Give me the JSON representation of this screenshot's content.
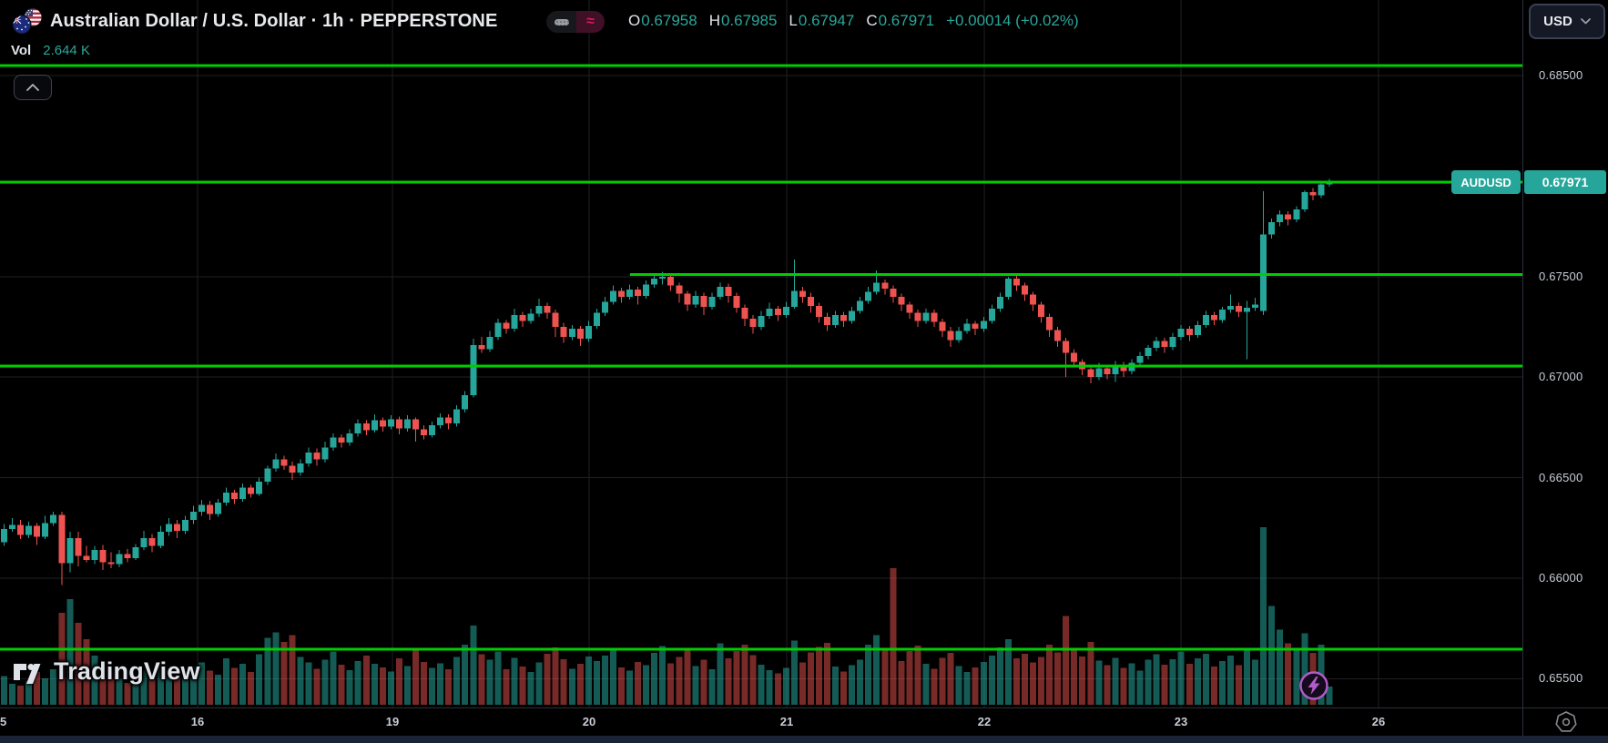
{
  "header": {
    "symbol_title": "Australian Dollar / U.S. Dollar · 1h · PEPPERSTONE",
    "ohlc": {
      "o_label": "O",
      "o": "0.67958",
      "h_label": "H",
      "h": "0.67985",
      "l_label": "L",
      "l": "0.67947",
      "c_label": "C",
      "c": "0.67971",
      "change": "+0.00014 (+0.02%)"
    },
    "volume_label": "Vol",
    "volume_value": "2.644 K",
    "currency_button": "USD"
  },
  "footer": {
    "logo_text": "TradingView"
  },
  "icons": {
    "flag": "aud-usd-flags-icon",
    "pill_left": "minimize-dash-icon",
    "pill_right_glyph": "≈",
    "collapse": "chevron-up-icon",
    "currency_dropdown": "chevron-down-icon",
    "badge": "lightning-icon",
    "corner": "heptagon-settings-icon"
  },
  "colors": {
    "background": "#000000",
    "up": "#26a69a",
    "down": "#ef5350",
    "vol_up": "rgba(38,166,154,0.55)",
    "vol_down": "rgba(239,83,80,0.5)",
    "level_line": "#00cc02",
    "grid": "#202023",
    "axis_text": "#c8ccd6",
    "label_bg": "#26a69a",
    "accent_pink": "#d81b60",
    "badge_purple": "#b05cc9"
  },
  "chart_data": {
    "type": "candlestick",
    "symbol": "AUDUSD",
    "interval": "1h",
    "exchange": "PEPPERSTONE",
    "title": "Australian Dollar / U.S. Dollar",
    "last_price": 0.67971,
    "price_label": {
      "tag": "AUDUSD",
      "value": "0.67971"
    },
    "ylim": [
      0.6536,
      0.6888
    ],
    "grid": true,
    "y_axis": {
      "ticks": [
        {
          "label": "0.68500",
          "price": 0.685
        },
        {
          "label": "0.67500",
          "price": 0.675
        },
        {
          "label": "0.67000",
          "price": 0.67
        },
        {
          "label": "0.66500",
          "price": 0.665
        },
        {
          "label": "0.66000",
          "price": 0.66
        },
        {
          "label": "0.65500",
          "price": 0.655
        }
      ]
    },
    "x_axis": {
      "ticks": [
        {
          "label": "5",
          "x": 2
        },
        {
          "label": "16",
          "x": 217
        },
        {
          "label": "19",
          "x": 431
        },
        {
          "label": "20",
          "x": 647
        },
        {
          "label": "21",
          "x": 864
        },
        {
          "label": "22",
          "x": 1081
        },
        {
          "label": "23",
          "x": 1297
        },
        {
          "label": "26",
          "x": 1514
        }
      ]
    },
    "horizontal_lines": [
      {
        "price": 0.6855,
        "from_x": 0
      },
      {
        "price": 0.67971,
        "from_x": 0
      },
      {
        "price": 0.6751,
        "from_x": 692
      },
      {
        "price": 0.67055,
        "from_x": 0
      },
      {
        "price": 0.65647,
        "from_x": 0
      }
    ],
    "candles": [
      [
        0.6618,
        0.6627,
        0.6616,
        0.66245
      ],
      [
        0.66245,
        0.663,
        0.6623,
        0.66265
      ],
      [
        0.66265,
        0.6629,
        0.66195,
        0.66215
      ],
      [
        0.66215,
        0.6628,
        0.662,
        0.6626
      ],
      [
        0.6626,
        0.66275,
        0.66165,
        0.66205
      ],
      [
        0.66205,
        0.6631,
        0.66195,
        0.66275
      ],
      [
        0.66275,
        0.6633,
        0.6626,
        0.66315
      ],
      [
        0.66315,
        0.6633,
        0.65965,
        0.66075
      ],
      [
        0.66075,
        0.6623,
        0.6603,
        0.662
      ],
      [
        0.662,
        0.6623,
        0.6606,
        0.6611
      ],
      [
        0.6611,
        0.6616,
        0.6608,
        0.6609
      ],
      [
        0.6609,
        0.6616,
        0.6607,
        0.6614
      ],
      [
        0.6614,
        0.66165,
        0.6604,
        0.6608
      ],
      [
        0.6608,
        0.6613,
        0.6605,
        0.6607
      ],
      [
        0.6607,
        0.6614,
        0.66055,
        0.6612
      ],
      [
        0.6612,
        0.66145,
        0.6608,
        0.661
      ],
      [
        0.661,
        0.6617,
        0.6609,
        0.66155
      ],
      [
        0.66155,
        0.66235,
        0.6614,
        0.662
      ],
      [
        0.662,
        0.6622,
        0.6613,
        0.6616
      ],
      [
        0.6616,
        0.6626,
        0.6615,
        0.6623
      ],
      [
        0.6623,
        0.663,
        0.6621,
        0.6627
      ],
      [
        0.6627,
        0.6629,
        0.662,
        0.66235
      ],
      [
        0.66235,
        0.6631,
        0.6622,
        0.6629
      ],
      [
        0.6629,
        0.6636,
        0.6627,
        0.6633
      ],
      [
        0.6633,
        0.6639,
        0.6631,
        0.66365
      ],
      [
        0.66365,
        0.66385,
        0.6629,
        0.6632
      ],
      [
        0.6632,
        0.66395,
        0.66305,
        0.66375
      ],
      [
        0.66375,
        0.6645,
        0.6636,
        0.66425
      ],
      [
        0.66425,
        0.6644,
        0.6637,
        0.66395
      ],
      [
        0.66395,
        0.6647,
        0.6638,
        0.6645
      ],
      [
        0.6645,
        0.66465,
        0.664,
        0.6642
      ],
      [
        0.6642,
        0.665,
        0.6641,
        0.6648
      ],
      [
        0.6648,
        0.6656,
        0.66465,
        0.66545
      ],
      [
        0.66545,
        0.6662,
        0.6653,
        0.6659
      ],
      [
        0.6659,
        0.6661,
        0.6654,
        0.6656
      ],
      [
        0.6656,
        0.6658,
        0.6649,
        0.66525
      ],
      [
        0.66525,
        0.6659,
        0.6651,
        0.6657
      ],
      [
        0.6657,
        0.6665,
        0.66555,
        0.66625
      ],
      [
        0.66625,
        0.66645,
        0.6656,
        0.6659
      ],
      [
        0.6659,
        0.6668,
        0.66575,
        0.6665
      ],
      [
        0.6665,
        0.6672,
        0.66635,
        0.667
      ],
      [
        0.667,
        0.66715,
        0.6665,
        0.66675
      ],
      [
        0.66675,
        0.6674,
        0.6666,
        0.6672
      ],
      [
        0.6672,
        0.6679,
        0.66705,
        0.6677
      ],
      [
        0.6677,
        0.66785,
        0.6671,
        0.66735
      ],
      [
        0.66735,
        0.66815,
        0.66725,
        0.66785
      ],
      [
        0.66785,
        0.668,
        0.6673,
        0.66755
      ],
      [
        0.66755,
        0.6681,
        0.6674,
        0.6679
      ],
      [
        0.6679,
        0.66805,
        0.66715,
        0.66745
      ],
      [
        0.66745,
        0.6681,
        0.6673,
        0.6679
      ],
      [
        0.6679,
        0.668,
        0.6668,
        0.6674
      ],
      [
        0.6674,
        0.6676,
        0.6669,
        0.6671
      ],
      [
        0.6671,
        0.6678,
        0.667,
        0.6676
      ],
      [
        0.6676,
        0.6682,
        0.66745,
        0.668
      ],
      [
        0.668,
        0.66815,
        0.6674,
        0.6677
      ],
      [
        0.6677,
        0.6686,
        0.66755,
        0.6684
      ],
      [
        0.6684,
        0.6693,
        0.66825,
        0.6691
      ],
      [
        0.6691,
        0.6719,
        0.669,
        0.6716
      ],
      [
        0.6716,
        0.672,
        0.6712,
        0.6714
      ],
      [
        0.6714,
        0.6723,
        0.67125,
        0.672
      ],
      [
        0.672,
        0.6729,
        0.67185,
        0.6727
      ],
      [
        0.6727,
        0.67285,
        0.67215,
        0.6724
      ],
      [
        0.6724,
        0.6734,
        0.67225,
        0.6731
      ],
      [
        0.6731,
        0.67325,
        0.6725,
        0.6728
      ],
      [
        0.6728,
        0.6734,
        0.67265,
        0.67315
      ],
      [
        0.67315,
        0.6739,
        0.673,
        0.67355
      ],
      [
        0.67355,
        0.6737,
        0.6729,
        0.6732
      ],
      [
        0.6732,
        0.67335,
        0.672,
        0.6725
      ],
      [
        0.6725,
        0.6727,
        0.6717,
        0.672
      ],
      [
        0.672,
        0.6726,
        0.67185,
        0.6724
      ],
      [
        0.6724,
        0.67255,
        0.67155,
        0.6719
      ],
      [
        0.6719,
        0.6728,
        0.67175,
        0.67255
      ],
      [
        0.67255,
        0.6734,
        0.6724,
        0.6732
      ],
      [
        0.6732,
        0.674,
        0.67305,
        0.67375
      ],
      [
        0.67375,
        0.67455,
        0.6736,
        0.6743
      ],
      [
        0.6743,
        0.67445,
        0.6737,
        0.674
      ],
      [
        0.674,
        0.6746,
        0.67385,
        0.67435
      ],
      [
        0.67435,
        0.6745,
        0.6736,
        0.67405
      ],
      [
        0.67405,
        0.6748,
        0.6739,
        0.6746
      ],
      [
        0.6746,
        0.6751,
        0.67445,
        0.6749
      ],
      [
        0.6749,
        0.67525,
        0.6746,
        0.675
      ],
      [
        0.675,
        0.67515,
        0.6743,
        0.67455
      ],
      [
        0.67455,
        0.6747,
        0.6737,
        0.67415
      ],
      [
        0.67415,
        0.6743,
        0.6733,
        0.6736
      ],
      [
        0.6736,
        0.6743,
        0.67345,
        0.67405
      ],
      [
        0.67405,
        0.6742,
        0.6731,
        0.6735
      ],
      [
        0.6735,
        0.6742,
        0.67335,
        0.674
      ],
      [
        0.674,
        0.6747,
        0.67385,
        0.6745
      ],
      [
        0.6745,
        0.67465,
        0.6737,
        0.67405
      ],
      [
        0.67405,
        0.6742,
        0.6732,
        0.67345
      ],
      [
        0.67345,
        0.6736,
        0.67255,
        0.6729
      ],
      [
        0.6729,
        0.6731,
        0.67215,
        0.6725
      ],
      [
        0.6725,
        0.6733,
        0.67235,
        0.67305
      ],
      [
        0.67305,
        0.6737,
        0.6729,
        0.6734
      ],
      [
        0.6734,
        0.67355,
        0.6728,
        0.6731
      ],
      [
        0.6731,
        0.67375,
        0.67295,
        0.6735
      ],
      [
        0.6735,
        0.67585,
        0.6734,
        0.6743
      ],
      [
        0.6743,
        0.6745,
        0.6737,
        0.674
      ],
      [
        0.674,
        0.6742,
        0.6732,
        0.67355
      ],
      [
        0.67355,
        0.6737,
        0.6727,
        0.673
      ],
      [
        0.673,
        0.6732,
        0.6723,
        0.6726
      ],
      [
        0.6726,
        0.6733,
        0.67245,
        0.6731
      ],
      [
        0.6731,
        0.67325,
        0.6725,
        0.6728
      ],
      [
        0.6728,
        0.6735,
        0.67265,
        0.6733
      ],
      [
        0.6733,
        0.674,
        0.67315,
        0.6738
      ],
      [
        0.6738,
        0.6745,
        0.67365,
        0.67425
      ],
      [
        0.67425,
        0.6753,
        0.6741,
        0.6747
      ],
      [
        0.6747,
        0.67485,
        0.6741,
        0.6744
      ],
      [
        0.6744,
        0.67455,
        0.6737,
        0.674
      ],
      [
        0.674,
        0.67415,
        0.6733,
        0.6736
      ],
      [
        0.6736,
        0.67375,
        0.6729,
        0.6732
      ],
      [
        0.6732,
        0.67335,
        0.6725,
        0.6728
      ],
      [
        0.6728,
        0.6734,
        0.67265,
        0.6732
      ],
      [
        0.6732,
        0.67335,
        0.6725,
        0.67275
      ],
      [
        0.67275,
        0.6729,
        0.672,
        0.6723
      ],
      [
        0.6723,
        0.6725,
        0.6715,
        0.67185
      ],
      [
        0.67185,
        0.6725,
        0.6717,
        0.6723
      ],
      [
        0.6723,
        0.6729,
        0.67215,
        0.67265
      ],
      [
        0.67265,
        0.6728,
        0.6721,
        0.6724
      ],
      [
        0.6724,
        0.673,
        0.67225,
        0.6728
      ],
      [
        0.6728,
        0.6736,
        0.67265,
        0.6734
      ],
      [
        0.6734,
        0.6742,
        0.67325,
        0.674
      ],
      [
        0.674,
        0.675,
        0.67385,
        0.6749
      ],
      [
        0.6749,
        0.67505,
        0.6743,
        0.67455
      ],
      [
        0.67455,
        0.6747,
        0.6738,
        0.6741
      ],
      [
        0.6741,
        0.67425,
        0.6733,
        0.6736
      ],
      [
        0.6736,
        0.67375,
        0.6727,
        0.673
      ],
      [
        0.673,
        0.67315,
        0.672,
        0.67235
      ],
      [
        0.67235,
        0.6725,
        0.6715,
        0.6718
      ],
      [
        0.6718,
        0.67195,
        0.67,
        0.6712
      ],
      [
        0.6712,
        0.6714,
        0.6705,
        0.67075
      ],
      [
        0.67075,
        0.6709,
        0.6701,
        0.6704
      ],
      [
        0.6704,
        0.6706,
        0.6697,
        0.67
      ],
      [
        0.67,
        0.6707,
        0.66985,
        0.67045
      ],
      [
        0.67045,
        0.6706,
        0.6699,
        0.67015
      ],
      [
        0.67015,
        0.6708,
        0.66975,
        0.6706
      ],
      [
        0.6706,
        0.67075,
        0.67,
        0.6703
      ],
      [
        0.6703,
        0.6709,
        0.67015,
        0.6707
      ],
      [
        0.6707,
        0.67125,
        0.67055,
        0.67105
      ],
      [
        0.67105,
        0.6716,
        0.6709,
        0.67145
      ],
      [
        0.67145,
        0.672,
        0.6713,
        0.6718
      ],
      [
        0.6718,
        0.67195,
        0.6712,
        0.6715
      ],
      [
        0.6715,
        0.6722,
        0.67135,
        0.672
      ],
      [
        0.672,
        0.6726,
        0.67185,
        0.6724
      ],
      [
        0.6724,
        0.67255,
        0.6718,
        0.6721
      ],
      [
        0.6721,
        0.6728,
        0.67195,
        0.6726
      ],
      [
        0.6726,
        0.6733,
        0.67245,
        0.6731
      ],
      [
        0.6731,
        0.67325,
        0.6726,
        0.67285
      ],
      [
        0.67285,
        0.6735,
        0.6727,
        0.67335
      ],
      [
        0.67335,
        0.6741,
        0.6732,
        0.67355
      ],
      [
        0.67355,
        0.6737,
        0.673,
        0.67325
      ],
      [
        0.67325,
        0.6738,
        0.6709,
        0.67345
      ],
      [
        0.67345,
        0.67395,
        0.6733,
        0.6736
      ],
      [
        0.6733,
        0.67925,
        0.6731,
        0.6771
      ],
      [
        0.6771,
        0.6779,
        0.6769,
        0.6777
      ],
      [
        0.6777,
        0.6783,
        0.6775,
        0.6781
      ],
      [
        0.6781,
        0.67825,
        0.67755,
        0.67785
      ],
      [
        0.67785,
        0.6785,
        0.6777,
        0.67835
      ],
      [
        0.67835,
        0.6793,
        0.6782,
        0.6792
      ],
      [
        0.6792,
        0.6794,
        0.6788,
        0.67905
      ],
      [
        0.67905,
        0.6797,
        0.6789,
        0.67958
      ],
      [
        0.67958,
        0.67985,
        0.67947,
        0.67971
      ]
    ],
    "volumes_k": [
      4.2,
      3.1,
      2.8,
      3.5,
      4.8,
      3.9,
      5.2,
      13.5,
      15.5,
      12.0,
      9.6,
      7.2,
      5.5,
      4.6,
      3.8,
      3.2,
      4.0,
      5.0,
      4.4,
      5.8,
      5.2,
      4.1,
      4.7,
      5.6,
      6.2,
      5.0,
      4.4,
      6.8,
      5.4,
      6.0,
      4.8,
      7.4,
      9.8,
      10.6,
      9.2,
      10.2,
      7.0,
      6.2,
      5.3,
      6.6,
      7.8,
      5.9,
      5.1,
      6.4,
      7.2,
      6.0,
      5.5,
      4.9,
      6.8,
      5.7,
      8.2,
      6.3,
      5.4,
      6.1,
      5.2,
      7.0,
      8.8,
      11.6,
      7.4,
      6.6,
      7.8,
      5.2,
      6.9,
      5.6,
      4.8,
      6.2,
      7.5,
      8.4,
      6.7,
      5.3,
      6.0,
      7.1,
      6.4,
      7.2,
      8.0,
      5.5,
      5.0,
      6.3,
      5.8,
      7.6,
      8.6,
      6.1,
      7.0,
      8.2,
      5.7,
      6.6,
      5.2,
      9.0,
      6.8,
      7.9,
      8.8,
      7.3,
      5.9,
      5.1,
      4.6,
      5.4,
      9.4,
      6.2,
      7.7,
      8.5,
      9.1,
      5.6,
      4.9,
      5.8,
      6.6,
      8.8,
      10.2,
      8.1,
      20.0,
      6.4,
      7.9,
      8.7,
      6.0,
      5.3,
      6.9,
      7.6,
      5.7,
      4.8,
      5.5,
      6.3,
      7.2,
      8.4,
      9.6,
      6.8,
      7.5,
      6.2,
      7.0,
      8.8,
      7.7,
      13.0,
      8.3,
      7.1,
      9.2,
      6.5,
      5.8,
      6.9,
      5.4,
      6.1,
      5.0,
      6.6,
      7.4,
      5.9,
      6.7,
      7.8,
      6.0,
      6.8,
      7.5,
      5.6,
      6.4,
      7.2,
      5.8,
      8.0,
      6.6,
      26.0,
      14.5,
      11.0,
      9.0,
      8.2,
      10.5,
      7.6,
      8.8,
      2.644
    ],
    "volume_unit": "K",
    "legend_position": "top-left"
  }
}
